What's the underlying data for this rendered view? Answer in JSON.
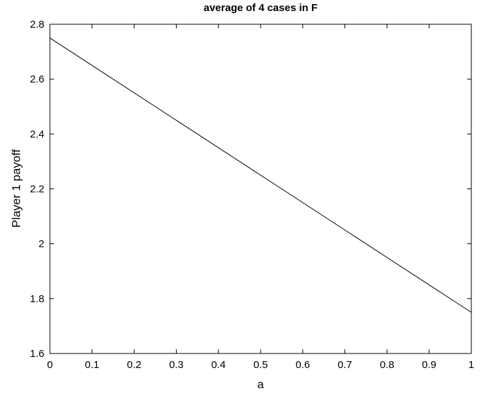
{
  "chart_data": {
    "type": "line",
    "title": "average of 4 cases in F",
    "xlabel": "a",
    "ylabel": "Player 1 payoff",
    "xlim": [
      0,
      1
    ],
    "ylim": [
      1.6,
      2.8
    ],
    "xticks": [
      "0",
      "0.1",
      "0.2",
      "0.3",
      "0.4",
      "0.5",
      "0.6",
      "0.7",
      "0.8",
      "0.9",
      "1"
    ],
    "yticks": [
      "1.6",
      "1.8",
      "2",
      "2.2",
      "2.4",
      "2.6",
      "2.8"
    ],
    "grid": false,
    "series": [
      {
        "x": [
          0,
          1
        ],
        "y": [
          2.75,
          1.75
        ],
        "color": "#000000"
      }
    ]
  }
}
